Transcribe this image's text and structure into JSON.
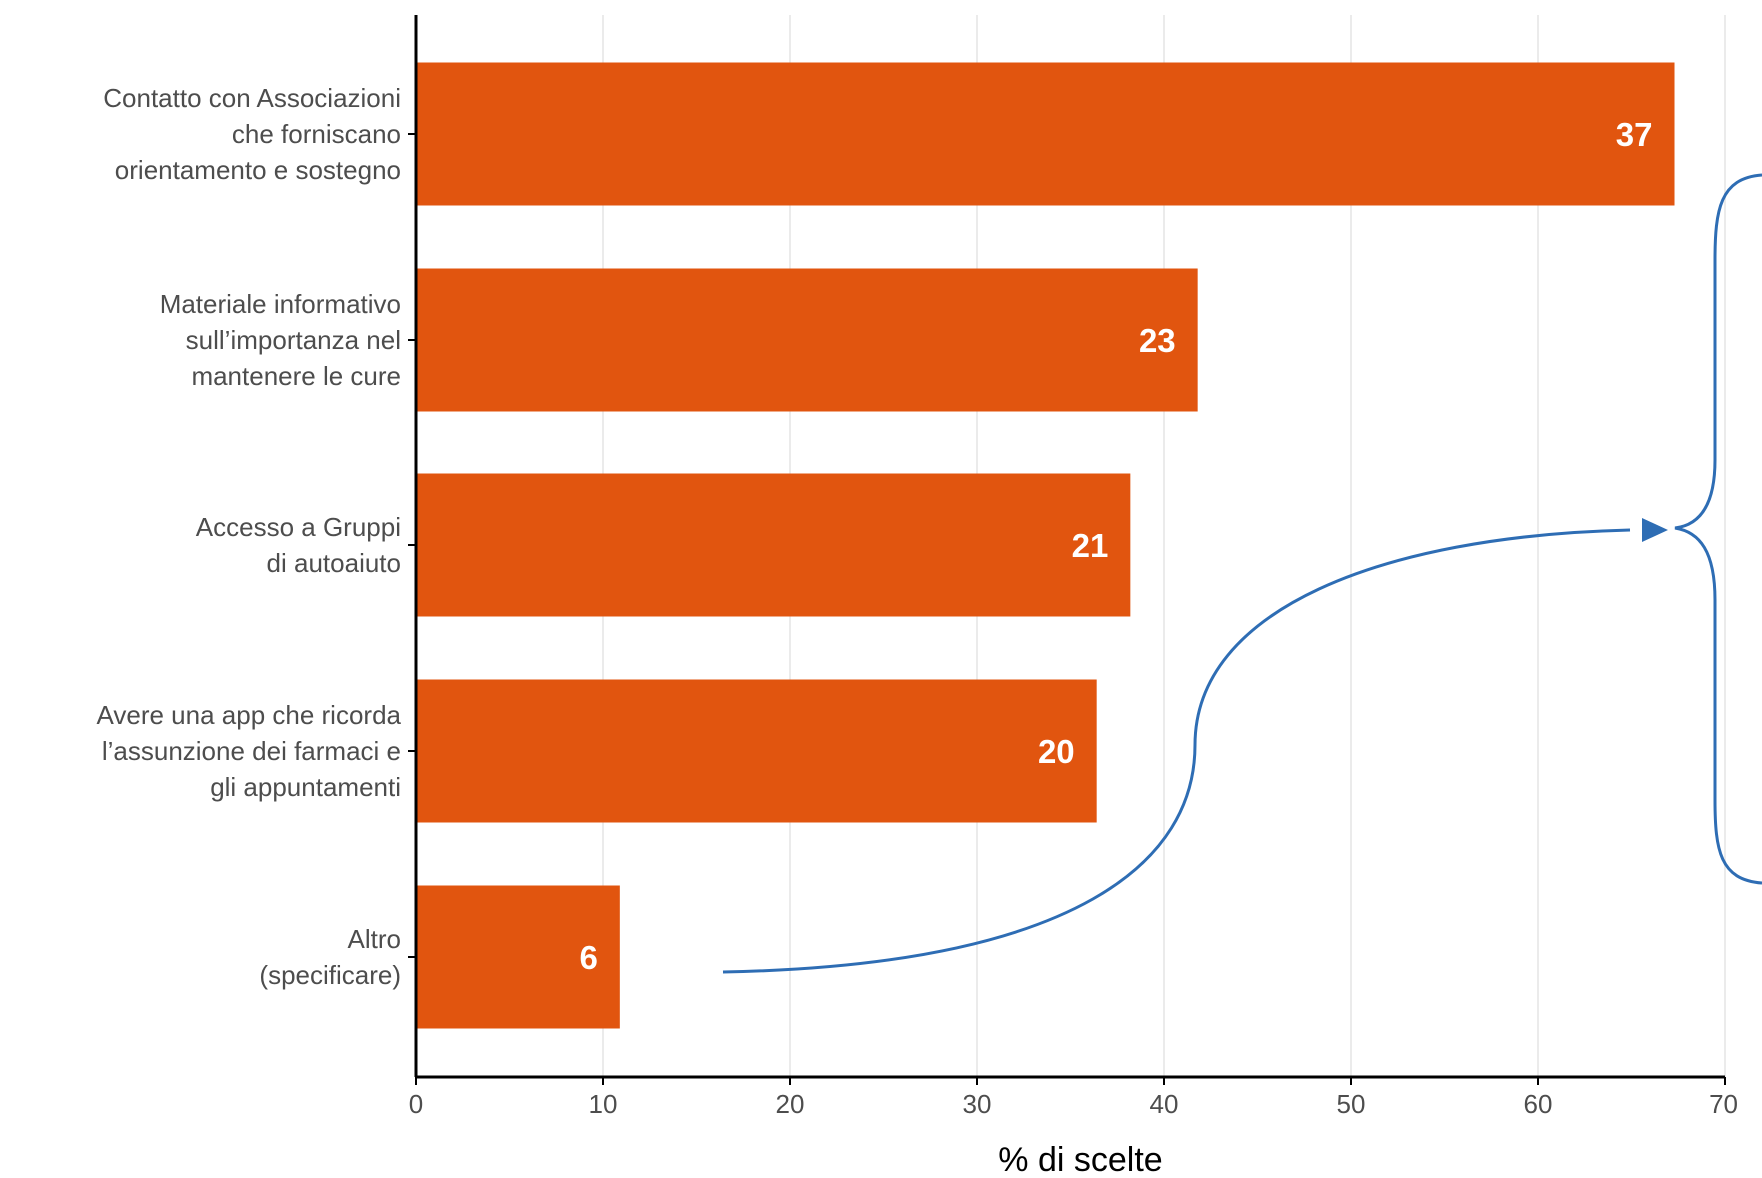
{
  "chart_data": {
    "type": "bar",
    "orientation": "horizontal",
    "categories": [
      [
        "Contatto con Associazioni",
        "che forniscano",
        "orientamento e sostegno"
      ],
      [
        "Materiale informativo",
        "sull’importanza nel",
        "mantenere le cure"
      ],
      [
        "Accesso a Gruppi",
        "di autoaiuto"
      ],
      [
        "Avere una app che ricorda",
        "l’assunzione dei farmaci e",
        "gli appuntamenti"
      ],
      [
        "Altro",
        "(specificare)"
      ]
    ],
    "values": [
      67.3,
      41.8,
      38.2,
      36.4,
      10.9
    ],
    "data_labels": [
      "37",
      "23",
      "21",
      "20",
      "6"
    ],
    "xlabel": "% di scelte",
    "ylabel": "",
    "title": "",
    "xlim": [
      0,
      70
    ],
    "x_ticks": [
      0,
      10,
      20,
      30,
      40,
      50,
      60,
      70
    ],
    "grid": "vertical",
    "legend": "none",
    "colors": {
      "bar": "#E1550F",
      "annotation": "#2E6DB4",
      "grid": "#ebebeb",
      "axis": "#000000"
    }
  }
}
